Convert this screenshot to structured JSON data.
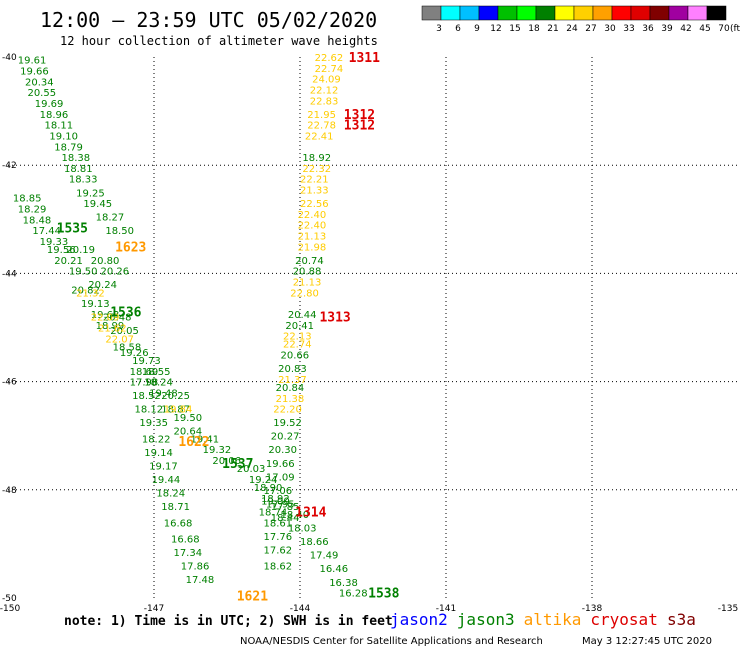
{
  "title": "12:00 – 23:59 UTC 05/02/2020",
  "subtitle": "12 hour collection of altimeter wave heights",
  "legend_scale": {
    "labels": [
      "3",
      "6",
      "9",
      "12",
      "15",
      "18",
      "21",
      "24",
      "27",
      "30",
      "33",
      "36",
      "39",
      "42",
      "45",
      "70"
    ],
    "unit": "(ft)",
    "colors": [
      "#808080",
      "#00ffff",
      "#00c0ff",
      "#0000ff",
      "#00c000",
      "#00ff00",
      "#008000",
      "#ffff00",
      "#ffd000",
      "#ffa000",
      "#ff0000",
      "#e00000",
      "#800000",
      "#a000a0",
      "#ff80ff",
      "#000000"
    ]
  },
  "satellites": [
    {
      "name": "jason2",
      "color": "#0000ff"
    },
    {
      "name": "jason3",
      "color": "#008000"
    },
    {
      "name": "altika",
      "color": "#ff9900"
    },
    {
      "name": "cryosat",
      "color": "#dd0000"
    },
    {
      "name": "s3a",
      "color": "#800000"
    }
  ],
  "note": "note: 1) Time is in UTC; 2) SWH is in feet",
  "credit": "NOAA/NESDIS Center for Satellite Applications and Research",
  "timestamp": "May  3 12:27:45 UTC 2020",
  "chart_data": {
    "type": "scatter",
    "xlim": [
      -150,
      -135
    ],
    "ylim": [
      -50,
      -40
    ],
    "x_ticks": [
      "-150",
      "-147",
      "-144",
      "-141",
      "-138",
      "-135"
    ],
    "y_ticks": [
      "-40",
      "-42",
      "-44",
      "-46",
      "-48",
      "-50"
    ],
    "grid": true,
    "pass_labels": [
      {
        "text": "1311",
        "lon": -143.0,
        "lat": -40.0,
        "color": "#dd0000"
      },
      {
        "text": "1312",
        "lon": -143.1,
        "lat": -41.05,
        "color": "#dd0000"
      },
      {
        "text": "1312",
        "lon": -143.1,
        "lat": -41.25,
        "color": "#dd0000"
      },
      {
        "text": "1623",
        "lon": -147.8,
        "lat": -43.5,
        "color": "#ff9900"
      },
      {
        "text": "1535",
        "lon": -149.0,
        "lat": -43.15,
        "color": "#008000"
      },
      {
        "text": "1536",
        "lon": -147.9,
        "lat": -44.7,
        "color": "#008000"
      },
      {
        "text": "1313",
        "lon": -143.6,
        "lat": -44.8,
        "color": "#dd0000"
      },
      {
        "text": "1622",
        "lon": -146.5,
        "lat": -47.1,
        "color": "#ff9900"
      },
      {
        "text": "1537",
        "lon": -145.6,
        "lat": -47.5,
        "color": "#008000"
      },
      {
        "text": "1314",
        "lon": -144.1,
        "lat": -48.4,
        "color": "#dd0000"
      },
      {
        "text": "1621",
        "lon": -145.3,
        "lat": -49.95,
        "color": "#ff9900"
      },
      {
        "text": "1538",
        "lon": -142.6,
        "lat": -49.9,
        "color": "#008000"
      }
    ],
    "series": [
      {
        "name": "jason3",
        "color": "#008000",
        "points": [
          [
            -149.8,
            -40.05,
            "19.61"
          ],
          [
            -149.75,
            -40.25,
            "19.66"
          ],
          [
            -149.65,
            -40.45,
            "20.34"
          ],
          [
            -149.6,
            -40.65,
            "20.55"
          ],
          [
            -149.45,
            -40.85,
            "19.69"
          ],
          [
            -149.35,
            -41.05,
            "18.96"
          ],
          [
            -149.25,
            -41.25,
            "18.11"
          ],
          [
            -149.15,
            -41.45,
            "19.10"
          ],
          [
            -149.05,
            -41.65,
            "18.79"
          ],
          [
            -148.9,
            -41.85,
            "18.38"
          ],
          [
            -148.85,
            -42.05,
            "18.81"
          ],
          [
            -148.75,
            -42.25,
            "18.33"
          ],
          [
            -148.6,
            -42.5,
            "19.25"
          ],
          [
            -148.45,
            -42.7,
            "19.45"
          ],
          [
            -148.2,
            -42.95,
            "18.27"
          ],
          [
            -148.0,
            -43.2,
            "18.50"
          ],
          [
            -149.9,
            -42.6,
            "18.85"
          ],
          [
            -149.8,
            -42.8,
            "18.29"
          ],
          [
            -149.7,
            -43.0,
            "18.48"
          ],
          [
            -149.5,
            -43.2,
            "17.44"
          ],
          [
            -149.35,
            -43.4,
            "19.33"
          ],
          [
            -148.8,
            -43.55,
            "20.19"
          ],
          [
            -149.2,
            -43.55,
            "19.56"
          ],
          [
            -149.05,
            -43.75,
            "20.21"
          ],
          [
            -148.3,
            -43.75,
            "20.80"
          ],
          [
            -148.75,
            -43.95,
            "19.50"
          ],
          [
            -148.1,
            -43.95,
            "20.26"
          ],
          [
            -148.35,
            -44.2,
            "20.24"
          ],
          [
            -148.7,
            -44.3,
            "20.82"
          ],
          [
            -148.5,
            -44.55,
            "19.13"
          ],
          [
            -148.3,
            -44.75,
            "19.63"
          ],
          [
            -148.05,
            -44.8,
            "20.48"
          ],
          [
            -148.2,
            -44.95,
            "18.99"
          ],
          [
            -147.9,
            -45.05,
            "20.05"
          ],
          [
            -147.85,
            -45.35,
            "18.58"
          ],
          [
            -147.7,
            -45.45,
            "19.26"
          ],
          [
            -147.45,
            -45.6,
            "19.73"
          ],
          [
            -147.5,
            -45.8,
            "18.69"
          ],
          [
            -147.25,
            -45.8,
            "18.55"
          ],
          [
            -147.5,
            -46.0,
            "17.98"
          ],
          [
            -147.2,
            -46.0,
            "18.24"
          ],
          [
            -147.1,
            -46.2,
            "19.48"
          ],
          [
            -147.45,
            -46.25,
            "18.52"
          ],
          [
            -146.85,
            -46.25,
            "20.25"
          ],
          [
            -147.4,
            -46.5,
            "18.12"
          ],
          [
            -146.85,
            -46.5,
            "18.87"
          ],
          [
            -146.6,
            -46.65,
            "19.50"
          ],
          [
            -147.3,
            -46.75,
            "19.35"
          ],
          [
            -146.6,
            -46.9,
            "20.64"
          ],
          [
            -147.25,
            -47.05,
            "18.22"
          ],
          [
            -146.25,
            -47.05,
            "19.41"
          ],
          [
            -146.0,
            -47.25,
            "19.32"
          ],
          [
            -147.2,
            -47.3,
            "19.14"
          ],
          [
            -145.8,
            -47.45,
            "20.06"
          ],
          [
            -147.1,
            -47.55,
            "19.17"
          ],
          [
            -145.3,
            -47.6,
            "20.03"
          ],
          [
            -147.05,
            -47.8,
            "19.44"
          ],
          [
            -145.05,
            -47.8,
            "19.24"
          ],
          [
            -146.95,
            -48.05,
            "18.24"
          ],
          [
            -144.95,
            -47.95,
            "18.90"
          ],
          [
            -144.8,
            -48.15,
            "18.92"
          ],
          [
            -146.85,
            -48.3,
            "18.71"
          ],
          [
            -144.85,
            -48.4,
            "18.74"
          ],
          [
            -146.8,
            -48.6,
            "16.68"
          ],
          [
            -144.75,
            -48.6,
            "18.61"
          ],
          [
            -146.65,
            -48.9,
            "16.68"
          ],
          [
            -144.75,
            -48.85,
            "17.76"
          ],
          [
            -146.6,
            -49.15,
            "17.34"
          ],
          [
            -144.75,
            -49.1,
            "17.62"
          ],
          [
            -146.45,
            -49.4,
            "17.86"
          ],
          [
            -144.75,
            -49.4,
            "18.62"
          ],
          [
            -146.35,
            -49.65,
            "17.48"
          ],
          [
            -144.7,
            -48.25,
            "17.95"
          ],
          [
            -144.4,
            -48.45,
            "18.40"
          ],
          [
            -144.25,
            -48.7,
            "18.03"
          ],
          [
            -144.0,
            -48.95,
            "18.66"
          ],
          [
            -143.8,
            -49.2,
            "17.49"
          ],
          [
            -143.6,
            -49.45,
            "16.46"
          ],
          [
            -143.4,
            -49.7,
            "16.38"
          ],
          [
            -143.2,
            -49.9,
            "16.28"
          ],
          [
            -144.6,
            -48.3,
            "17.85"
          ],
          [
            -144.6,
            -48.5,
            "18.44"
          ],
          [
            -143.95,
            -41.85,
            "18.92"
          ],
          [
            -144.1,
            -43.75,
            "20.74"
          ],
          [
            -144.15,
            -43.95,
            "20.88"
          ],
          [
            -144.25,
            -44.75,
            "20.44"
          ],
          [
            -144.3,
            -44.95,
            "20.41"
          ],
          [
            -144.4,
            -45.5,
            "20.66"
          ],
          [
            -144.45,
            -45.75,
            "20.83"
          ],
          [
            -144.5,
            -46.1,
            "20.84"
          ],
          [
            -144.55,
            -46.75,
            "19.52"
          ],
          [
            -144.6,
            -47.0,
            "20.27"
          ],
          [
            -144.65,
            -47.25,
            "20.30"
          ],
          [
            -144.7,
            -47.5,
            "19.66"
          ],
          [
            -144.7,
            -47.75,
            "17.09"
          ],
          [
            -144.75,
            -48.0,
            "17.06"
          ],
          [
            -144.8,
            -48.2,
            "19.00"
          ]
        ]
      },
      {
        "name": "altika",
        "color": "#ffcc00",
        "points": [
          [
            -143.7,
            -40.0,
            "22.62"
          ],
          [
            -143.7,
            -40.2,
            "22.74"
          ],
          [
            -143.75,
            -40.4,
            "24.09"
          ],
          [
            -143.8,
            -40.6,
            "22.12"
          ],
          [
            -143.8,
            -40.8,
            "22.83"
          ],
          [
            -143.85,
            -41.05,
            "21.95"
          ],
          [
            -143.85,
            -41.25,
            "22.78"
          ],
          [
            -143.9,
            -41.45,
            "22.41"
          ],
          [
            -143.95,
            -42.05,
            "22.32"
          ],
          [
            -144.0,
            -42.25,
            "22.21"
          ],
          [
            -144.0,
            -42.45,
            "21.33"
          ],
          [
            -144.0,
            -42.7,
            "22.56"
          ],
          [
            -144.05,
            -42.9,
            "22.40"
          ],
          [
            -144.05,
            -43.1,
            "22.40"
          ],
          [
            -144.05,
            -43.3,
            "21.13"
          ],
          [
            -144.05,
            -43.5,
            "21.98"
          ],
          [
            -144.15,
            -44.15,
            "21.13"
          ],
          [
            -144.2,
            -44.35,
            "22.80"
          ],
          [
            -144.35,
            -45.15,
            "22.13"
          ],
          [
            -144.35,
            -45.3,
            "22.74"
          ],
          [
            -144.45,
            -45.95,
            "21.37"
          ],
          [
            -144.5,
            -46.3,
            "21.38"
          ],
          [
            -144.55,
            -46.5,
            "22.20"
          ],
          [
            -148.6,
            -44.35,
            "21.32"
          ],
          [
            -148.3,
            -44.8,
            "22.09"
          ],
          [
            -148.15,
            -45.0,
            "21.62"
          ],
          [
            -148.0,
            -45.2,
            "22.07"
          ],
          [
            -146.8,
            -46.5,
            "19.84"
          ]
        ]
      }
    ]
  }
}
